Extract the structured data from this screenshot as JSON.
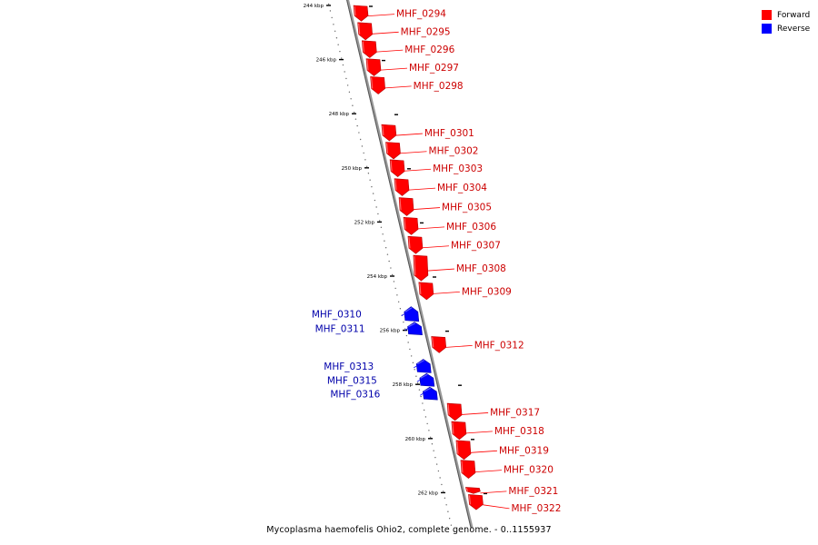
{
  "legend": {
    "items": [
      {
        "label": "Forward",
        "color": "#ff0000"
      },
      {
        "label": "Reverse",
        "color": "#0000ff"
      }
    ]
  },
  "footer": {
    "title": "Mycoplasma haemofelis Ohio2, complete genome. - 0..1155937"
  },
  "colors": {
    "forward": "#ff0000",
    "reverse": "#0000ff",
    "forward_label": "#cc0000",
    "reverse_label": "#0000aa"
  },
  "axis": {
    "ticks": [
      {
        "label": "244 kbp",
        "kbp": 244
      },
      {
        "label": "246 kbp",
        "kbp": 246
      },
      {
        "label": "248 kbp",
        "kbp": 248
      },
      {
        "label": "250 kbp",
        "kbp": 250
      },
      {
        "label": "252 kbp",
        "kbp": 252
      },
      {
        "label": "254 kbp",
        "kbp": 254
      },
      {
        "label": "256 kbp",
        "kbp": 256
      },
      {
        "label": "258 kbp",
        "kbp": 258
      },
      {
        "label": "260 kbp",
        "kbp": 260
      },
      {
        "label": "262 kbp",
        "kbp": 262
      }
    ]
  },
  "genes": [
    {
      "name": "MHF_0294",
      "strand": "forward",
      "start_kbp": 244.0,
      "end_kbp": 244.58
    },
    {
      "name": "MHF_0295",
      "strand": "forward",
      "start_kbp": 244.63,
      "end_kbp": 245.27
    },
    {
      "name": "MHF_0296",
      "strand": "forward",
      "start_kbp": 245.3,
      "end_kbp": 245.93
    },
    {
      "name": "MHF_0297",
      "strand": "forward",
      "start_kbp": 245.97,
      "end_kbp": 246.6
    },
    {
      "name": "MHF_0298",
      "strand": "forward",
      "start_kbp": 246.63,
      "end_kbp": 247.27
    },
    {
      "name": "MHF_0301",
      "strand": "forward",
      "start_kbp": 248.4,
      "end_kbp": 249.0
    },
    {
      "name": "MHF_0302",
      "strand": "forward",
      "start_kbp": 249.05,
      "end_kbp": 249.67
    },
    {
      "name": "MHF_0303",
      "strand": "forward",
      "start_kbp": 249.7,
      "end_kbp": 250.33
    },
    {
      "name": "MHF_0304",
      "strand": "forward",
      "start_kbp": 250.4,
      "end_kbp": 251.03
    },
    {
      "name": "MHF_0305",
      "strand": "forward",
      "start_kbp": 251.1,
      "end_kbp": 251.77
    },
    {
      "name": "MHF_0306",
      "strand": "forward",
      "start_kbp": 251.83,
      "end_kbp": 252.47
    },
    {
      "name": "MHF_0307",
      "strand": "forward",
      "start_kbp": 252.53,
      "end_kbp": 253.17
    },
    {
      "name": "MHF_0308",
      "strand": "forward",
      "start_kbp": 253.23,
      "end_kbp": 254.17
    },
    {
      "name": "MHF_0309",
      "strand": "forward",
      "start_kbp": 254.23,
      "end_kbp": 254.87
    },
    {
      "name": "MHF_0310",
      "strand": "reverse",
      "start_kbp": 255.13,
      "end_kbp": 255.67
    },
    {
      "name": "MHF_0311",
      "strand": "reverse",
      "start_kbp": 255.7,
      "end_kbp": 256.17
    },
    {
      "name": "MHF_0312",
      "strand": "forward",
      "start_kbp": 256.23,
      "end_kbp": 256.83
    },
    {
      "name": "MHF_0313",
      "strand": "reverse",
      "start_kbp": 257.07,
      "end_kbp": 257.57
    },
    {
      "name": "MHF_0315",
      "strand": "reverse",
      "start_kbp": 257.6,
      "end_kbp": 258.07
    },
    {
      "name": "MHF_0316",
      "strand": "reverse",
      "start_kbp": 258.1,
      "end_kbp": 258.57
    },
    {
      "name": "MHF_0317",
      "strand": "forward",
      "start_kbp": 258.7,
      "end_kbp": 259.33
    },
    {
      "name": "MHF_0318",
      "strand": "forward",
      "start_kbp": 259.37,
      "end_kbp": 260.03
    },
    {
      "name": "MHF_0319",
      "strand": "forward",
      "start_kbp": 260.07,
      "end_kbp": 260.77
    },
    {
      "name": "MHF_0320",
      "strand": "forward",
      "start_kbp": 260.8,
      "end_kbp": 261.47
    },
    {
      "name": "MHF_0321",
      "strand": "forward",
      "start_kbp": 261.8,
      "end_kbp": 262.03
    },
    {
      "name": "MHF_0322",
      "strand": "forward",
      "start_kbp": 262.07,
      "end_kbp": 262.63
    }
  ]
}
